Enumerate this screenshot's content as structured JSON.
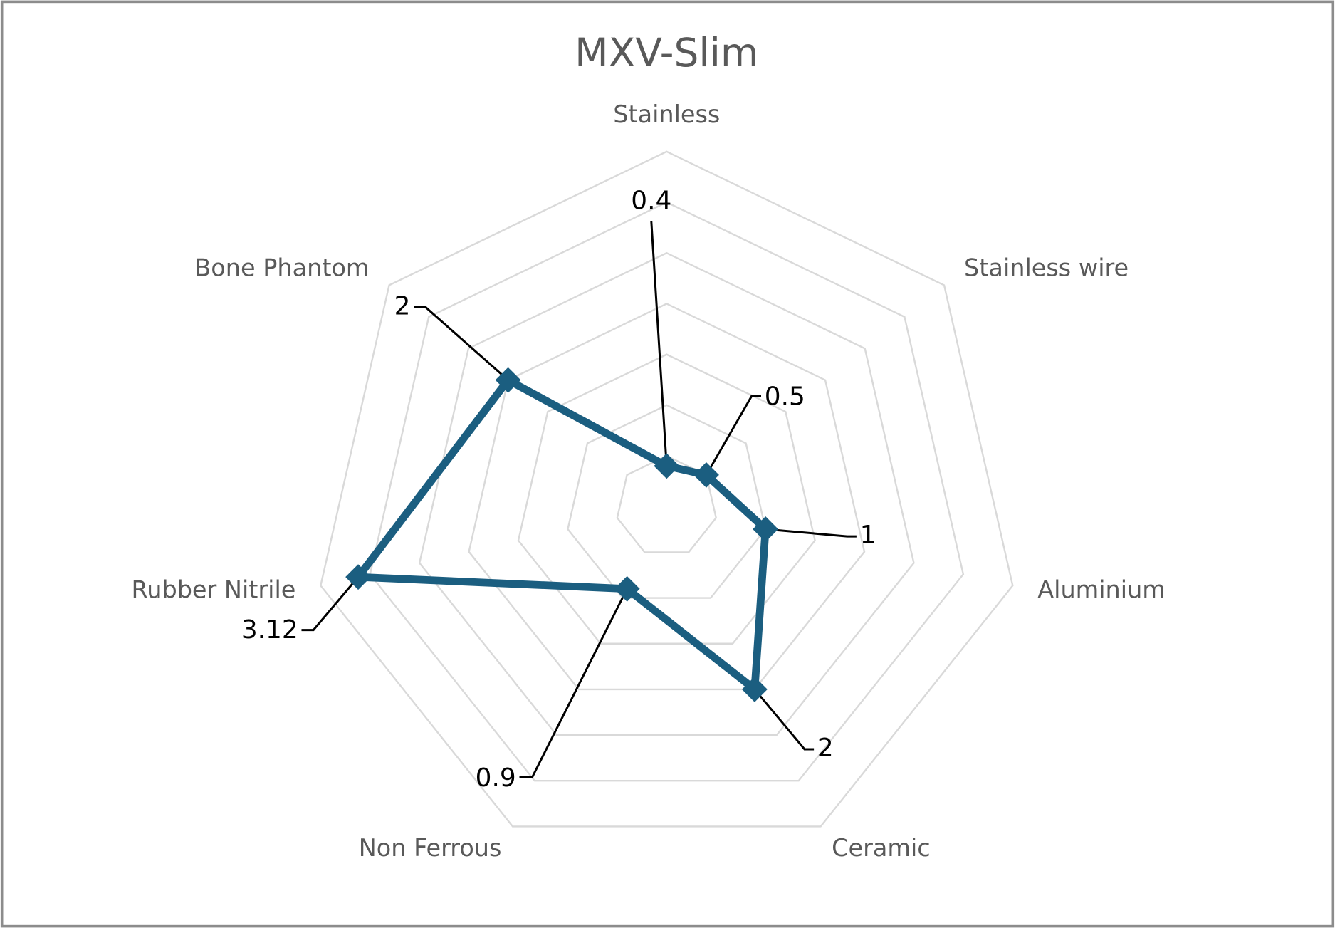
{
  "chart_data": {
    "type": "radar",
    "title": "MXV-Slim",
    "categories": [
      "Stainless",
      "Stainless wire",
      "Aluminium",
      "Ceramic",
      "Non Ferrous",
      "Rubber Nitrile",
      "Bone Phantom"
    ],
    "series": [
      {
        "color": "#1b5e80",
        "values": [
          0.4,
          0.5,
          1,
          2,
          0.9,
          3.12,
          2
        ]
      }
    ],
    "ylim": [
      0,
      3.5
    ],
    "yticks": [
      0,
      0.5,
      1,
      1.5,
      2,
      2.5,
      3,
      3.5
    ],
    "grid": true
  }
}
